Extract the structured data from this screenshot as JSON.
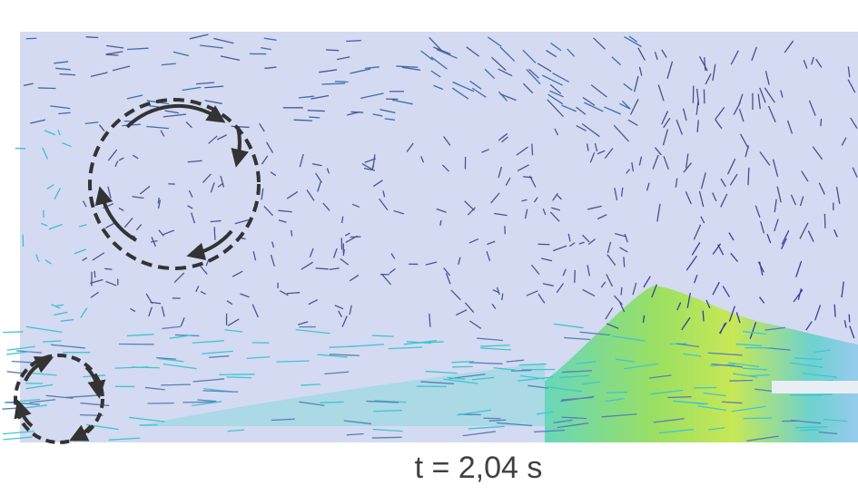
{
  "caption": "t = 2,04 s"
}
